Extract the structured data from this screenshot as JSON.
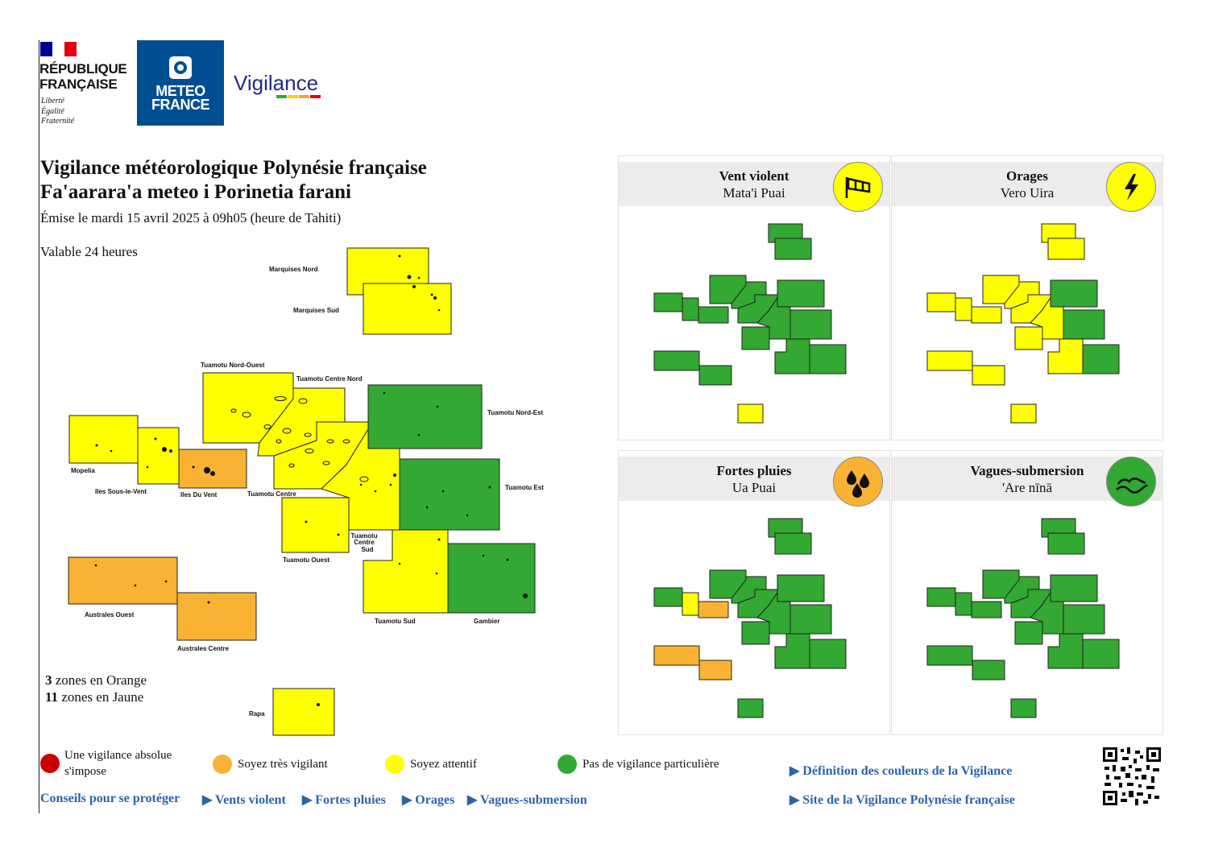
{
  "header": {
    "republique_line1": "RÉPUBLIQUE",
    "republique_line2": "FRANÇAISE",
    "motto": [
      "Liberté",
      "Égalité",
      "Fraternité"
    ],
    "meteo_line1": "METEO",
    "meteo_line2": "FRANCE",
    "vigilance_word": "Vigilance"
  },
  "title": {
    "line1": "Vigilance météorologique Polynésie française",
    "line2": "Fa'aarara'a meteo i Porinetia farani",
    "issued": "Émise le mardi 15 avril 2025 à 09h05 (heure de Tahiti)",
    "valid": "Valable 24 heures"
  },
  "colors": {
    "green": "#33a833",
    "yellow": "#ffff00",
    "orange": "#f9b233",
    "red": "#cc0000",
    "link": "#2a64a8"
  },
  "zones": {
    "marquises_nord": {
      "label": "Marquises Nord",
      "level": "yellow"
    },
    "marquises_sud": {
      "label": "Marquises Sud",
      "level": "yellow"
    },
    "tuamotu_nord_ouest": {
      "label": "Tuamotu Nord-Ouest",
      "level": "yellow"
    },
    "tuamotu_centre_nord": {
      "label": "Tuamotu Centre Nord",
      "level": "yellow"
    },
    "tuamotu_nord_est": {
      "label": "Tuamotu Nord-Est",
      "level": "green"
    },
    "mopelia": {
      "label": "Mopelia",
      "level": "yellow"
    },
    "iles_sous_le_vent": {
      "label": "Iles Sous-le-Vent",
      "level": "yellow"
    },
    "iles_du_vent": {
      "label": "Iles Du Vent",
      "level": "orange"
    },
    "tuamotu_centre": {
      "label": "Tuamotu Centre",
      "level": "yellow"
    },
    "tuamotu_est": {
      "label": "Tuamotu Est",
      "level": "green"
    },
    "tuamotu_ouest": {
      "label": "Tuamotu Ouest",
      "level": "yellow"
    },
    "tuamotu_centre_sud": {
      "label": [
        "Tuamotu",
        "Centre",
        "Sud"
      ],
      "level": "yellow"
    },
    "australes_ouest": {
      "label": "Australes Ouest",
      "level": "orange"
    },
    "australes_centre": {
      "label": "Australes Centre",
      "level": "orange"
    },
    "tuamotu_sud": {
      "label": "Tuamotu Sud",
      "level": "yellow"
    },
    "gambier": {
      "label": "Gambier",
      "level": "green"
    },
    "rapa": {
      "label": "Rapa",
      "level": "yellow"
    }
  },
  "summary": {
    "orange_count": "3",
    "orange_text": "zones en Orange",
    "yellow_count": "11",
    "yellow_text": "zones en Jaune"
  },
  "panels": [
    {
      "title": "Vent violent",
      "subtitle": "Mata'i Puai",
      "icon": "windsock-icon",
      "icon_color": "#ffff00",
      "levels": {
        "mn": "green",
        "ms": "green",
        "tno": "green",
        "tcn": "green",
        "tne": "green",
        "mop": "green",
        "isv": "green",
        "idv": "green",
        "tc": "green",
        "te": "green",
        "to": "green",
        "tcs": "green",
        "ao": "green",
        "ac": "green",
        "ts": "green",
        "gam": "green",
        "rapa": "yellow"
      }
    },
    {
      "title": "Orages",
      "subtitle": "Vero Uira",
      "icon": "lightning-icon",
      "icon_color": "#ffff00",
      "levels": {
        "mn": "yellow",
        "ms": "yellow",
        "tno": "yellow",
        "tcn": "yellow",
        "tne": "green",
        "mop": "yellow",
        "isv": "yellow",
        "idv": "yellow",
        "tc": "yellow",
        "te": "green",
        "to": "yellow",
        "tcs": "yellow",
        "ao": "yellow",
        "ac": "yellow",
        "ts": "yellow",
        "gam": "green",
        "rapa": "yellow"
      }
    },
    {
      "title": "Fortes pluies",
      "subtitle": "Ua Puai",
      "icon": "raindrops-icon",
      "icon_color": "#f9b233",
      "levels": {
        "mn": "green",
        "ms": "green",
        "tno": "green",
        "tcn": "green",
        "tne": "green",
        "mop": "green",
        "isv": "yellow",
        "idv": "orange",
        "tc": "green",
        "te": "green",
        "to": "green",
        "tcs": "green",
        "ao": "orange",
        "ac": "orange",
        "ts": "green",
        "gam": "green",
        "rapa": "green"
      }
    },
    {
      "title": "Vagues-submersion",
      "subtitle": "'Are nīnā",
      "icon": "waves-icon",
      "icon_color": "#33a833",
      "levels": {
        "mn": "green",
        "ms": "green",
        "tno": "green",
        "tcn": "green",
        "tne": "green",
        "mop": "green",
        "isv": "green",
        "idv": "green",
        "tc": "green",
        "te": "green",
        "to": "green",
        "tcs": "green",
        "ao": "green",
        "ac": "green",
        "ts": "green",
        "gam": "green",
        "rapa": "green"
      }
    }
  ],
  "legend": {
    "red": [
      "Une vigilance absolue",
      "s'impose"
    ],
    "orange": "Soyez très vigilant",
    "yellow": "Soyez attentif",
    "green": "Pas de vigilance particulière"
  },
  "links": {
    "conseils": "Conseils pour se protéger",
    "vent": "▶ Vents violent",
    "pluies": "▶ Fortes pluies",
    "orages": "▶ Orages",
    "vagues": "▶ Vagues-submersion",
    "definition": "▶ Définition des couleurs de la Vigilance",
    "site": "▶ Site de la Vigilance Polynésie française"
  }
}
